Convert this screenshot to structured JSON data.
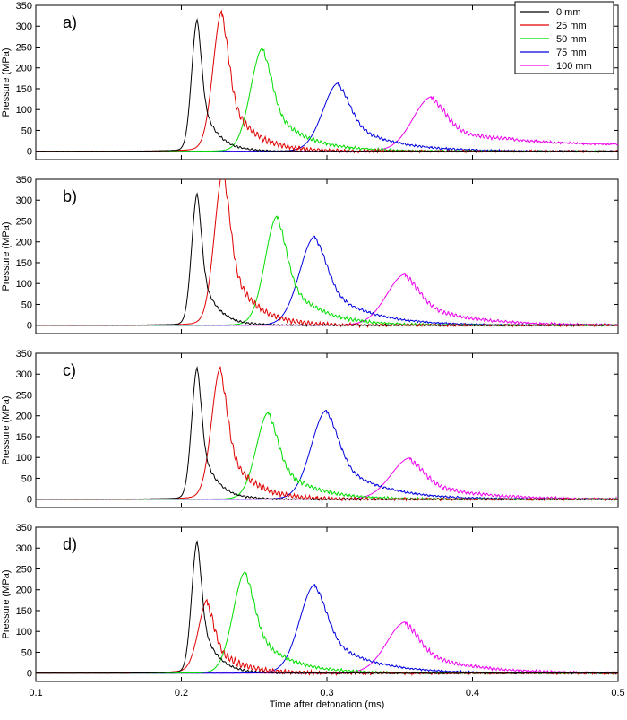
{
  "chart_data": {
    "type": "line",
    "xlabel": "Time after detonation (ms)",
    "xlim": [
      0.1,
      0.5
    ],
    "xticks": [
      "0.1",
      "0.2",
      "0.3",
      "0.4",
      "0.5"
    ],
    "legend_position": "top-right",
    "legend": [
      {
        "name": "0 mm",
        "color": "#000000"
      },
      {
        "name": "25 mm",
        "color": "#e00000"
      },
      {
        "name": "50 mm",
        "color": "#00dd00"
      },
      {
        "name": "75 mm",
        "color": "#0000dd"
      },
      {
        "name": "100 mm",
        "color": "#ee00ee"
      }
    ],
    "panels": [
      {
        "label": "a)",
        "ylabel": "Pressure (MPa)",
        "ylim": [
          -20,
          350
        ],
        "yticks": [
          "0",
          "50",
          "100",
          "150",
          "200",
          "250",
          "300",
          "350"
        ],
        "series": [
          {
            "name": "0 mm",
            "peak_time": 0.211,
            "peak": 310,
            "base": 0
          },
          {
            "name": "25 mm",
            "peak_time": 0.228,
            "peak": 323,
            "base": 0
          },
          {
            "name": "50 mm",
            "peak_time": 0.256,
            "peak": 242,
            "base": 0
          },
          {
            "name": "75 mm",
            "peak_time": 0.308,
            "peak": 158,
            "base": 0
          },
          {
            "name": "100 mm",
            "peak_time": 0.372,
            "peak": 125,
            "base": 15
          }
        ]
      },
      {
        "label": "b)",
        "ylabel": "Pressure (MPa)",
        "ylim": [
          -20,
          350
        ],
        "yticks": [
          "0",
          "50",
          "100",
          "150",
          "200",
          "250",
          "300",
          "350"
        ],
        "series": [
          {
            "name": "0 mm",
            "peak_time": 0.211,
            "peak": 310,
            "base": 0
          },
          {
            "name": "25 mm",
            "peak_time": 0.229,
            "peak": 358,
            "base": 0
          },
          {
            "name": "50 mm",
            "peak_time": 0.266,
            "peak": 256,
            "base": 0
          },
          {
            "name": "75 mm",
            "peak_time": 0.292,
            "peak": 208,
            "base": 0
          },
          {
            "name": "100 mm",
            "peak_time": 0.354,
            "peak": 117,
            "base": 0
          }
        ]
      },
      {
        "label": "c)",
        "ylabel": "Pressure (MPa)",
        "ylim": [
          -20,
          350
        ],
        "yticks": [
          "0",
          "50",
          "100",
          "150",
          "200",
          "250",
          "300",
          "350"
        ],
        "series": [
          {
            "name": "0 mm",
            "peak_time": 0.211,
            "peak": 310,
            "base": 0
          },
          {
            "name": "25 mm",
            "peak_time": 0.227,
            "peak": 302,
            "base": 0
          },
          {
            "name": "50 mm",
            "peak_time": 0.26,
            "peak": 203,
            "base": 0
          },
          {
            "name": "75 mm",
            "peak_time": 0.3,
            "peak": 208,
            "base": 0
          },
          {
            "name": "100 mm",
            "peak_time": 0.357,
            "peak": 93,
            "base": 0
          }
        ]
      },
      {
        "label": "d)",
        "ylabel": "Pressure (MPa)",
        "ylim": [
          -20,
          350
        ],
        "yticks": [
          "0",
          "50",
          "100",
          "150",
          "200",
          "250",
          "300",
          "350"
        ],
        "series": [
          {
            "name": "0 mm",
            "peak_time": 0.211,
            "peak": 310,
            "base": 0
          },
          {
            "name": "25 mm",
            "peak_time": 0.218,
            "peak": 162,
            "base": 0
          },
          {
            "name": "50 mm",
            "peak_time": 0.244,
            "peak": 237,
            "base": 0
          },
          {
            "name": "75 mm",
            "peak_time": 0.292,
            "peak": 207,
            "base": 0
          },
          {
            "name": "100 mm",
            "peak_time": 0.354,
            "peak": 117,
            "base": 0
          }
        ]
      }
    ]
  }
}
